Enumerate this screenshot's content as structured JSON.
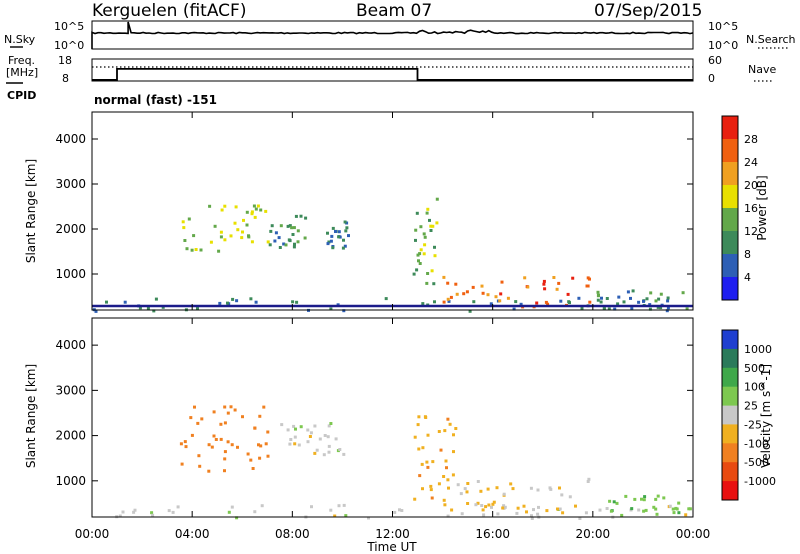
{
  "header": {
    "station": "Kerguelen (fitACF)",
    "beam": "Beam 07",
    "date": "07/Sep/2015"
  },
  "noise_panel": {
    "left_label": "N.Sky",
    "right_label": "N.Search",
    "scale_top": "10^5",
    "scale_bottom": "10^0"
  },
  "freq_panel": {
    "label_line1": "Freq.",
    "label_line2": "[MHz]",
    "cpid_label": "CPID",
    "left_top": "18",
    "left_bottom": "8",
    "right_top": "60",
    "right_bottom": "0",
    "right_label": "Nave",
    "cpid_text": "normal (fast) -151",
    "freq_steps": [
      {
        "x_h": 0.0,
        "y": 8.5
      },
      {
        "x_h": 1.0,
        "y": 8.5
      },
      {
        "x_h": 1.0,
        "y": 13.5
      },
      {
        "x_h": 13.0,
        "y": 13.5
      },
      {
        "x_h": 13.0,
        "y": 8.5
      },
      {
        "x_h": 24.0,
        "y": 8.5
      }
    ]
  },
  "power_panel": {
    "ylabel": "Slant Range [km]",
    "yticks": [
      "1000",
      "2000",
      "3000",
      "4000"
    ],
    "colorbar_label": "Power [dB]",
    "colorbar_ticks": [
      "4",
      "8",
      "12",
      "16",
      "20",
      "24",
      "28"
    ]
  },
  "velocity_panel": {
    "ylabel": "Slant Range [km]",
    "yticks": [
      "1000",
      "2000",
      "3000",
      "4000"
    ],
    "colorbar_label": "Velocity [m s^-1]",
    "colorbar_ticks": [
      "1000",
      "500",
      "100",
      "25",
      "-25",
      "-100",
      "-500",
      "-1000"
    ]
  },
  "xaxis": {
    "label": "Time UT",
    "ticks": [
      "00:00",
      "04:00",
      "08:00",
      "12:00",
      "16:00",
      "20:00",
      "00:00"
    ]
  },
  "colors": {
    "power_scale": [
      "#1f1ff0",
      "#2d5fb5",
      "#3d8a5a",
      "#63a84a",
      "#e8e000",
      "#f0a020",
      "#f06010",
      "#e82010"
    ],
    "velocity_scale": [
      "#1f3fd0",
      "#2a7a5a",
      "#3fa84a",
      "#7dc850",
      "#c8c8c8",
      "#f0b020",
      "#f08020",
      "#e84a10",
      "#e81010"
    ]
  },
  "chart_data": {
    "type": "heatmap",
    "title": "Kerguelen (fitACF) Beam 07 07/Sep/2015",
    "xlabel": "Time UT",
    "ylabel": "Slant Range [km]",
    "xlim": [
      0,
      24
    ],
    "ylim": [
      200,
      4600
    ],
    "power_clusters": [
      {
        "t0": 0.0,
        "t1": 24.0,
        "r0": 200,
        "r1": 500,
        "value": 8
      },
      {
        "t0": 3.5,
        "t1": 7.0,
        "r0": 1500,
        "r1": 2700,
        "value": 16
      },
      {
        "t0": 7.0,
        "t1": 8.5,
        "r0": 1600,
        "r1": 2400,
        "value": 10
      },
      {
        "t0": 9.3,
        "t1": 10.2,
        "r0": 1600,
        "r1": 2200,
        "value": 8
      },
      {
        "t0": 12.8,
        "t1": 13.8,
        "r0": 800,
        "r1": 2700,
        "value": 14
      },
      {
        "t0": 13.8,
        "t1": 20.0,
        "r0": 300,
        "r1": 1000,
        "value": 26
      },
      {
        "t0": 20.0,
        "t1": 24.0,
        "r0": 250,
        "r1": 700,
        "value": 10
      }
    ],
    "velocity_clusters": [
      {
        "t0": 0.0,
        "t1": 24.0,
        "r0": 200,
        "r1": 500,
        "value": 0
      },
      {
        "t0": 3.5,
        "t1": 7.0,
        "r0": 1200,
        "r1": 2700,
        "value": -150
      },
      {
        "t0": 7.5,
        "t1": 10.2,
        "r0": 1600,
        "r1": 2300,
        "value": 0
      },
      {
        "t0": 12.8,
        "t1": 14.5,
        "r0": 500,
        "r1": 2500,
        "value": -80
      },
      {
        "t0": 14.5,
        "t1": 20.0,
        "r0": 300,
        "r1": 1100,
        "value": -30
      },
      {
        "t0": 20.0,
        "t1": 24.0,
        "r0": 250,
        "r1": 700,
        "value": 80
      }
    ]
  }
}
